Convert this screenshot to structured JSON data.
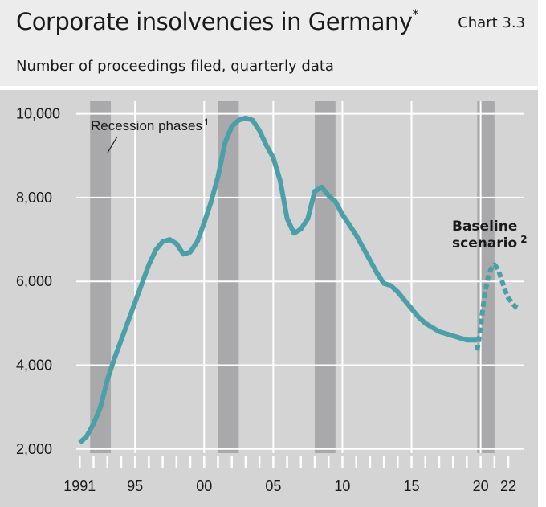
{
  "header": {
    "title": "Corporate insolvencies in Germany",
    "title_marker": "*",
    "chart_label": "Chart 3.3",
    "subtitle": "Number of proceedings filed, quarterly data"
  },
  "colors": {
    "line": "#4b9fa8",
    "recession": "#a9a9ab",
    "plot_bg": "#d4d4d5"
  },
  "chart_data": {
    "type": "line",
    "title": "Corporate insolvencies in Germany",
    "subtitle": "Number of proceedings filed, quarterly data",
    "ylabel": "",
    "xlabel": "",
    "ylim": [
      1900,
      10300
    ],
    "xlim": [
      1990.75,
      2023.1
    ],
    "y_ticks": [
      2000,
      4000,
      6000,
      8000,
      10000
    ],
    "y_tick_labels": [
      "2,000",
      "4,000",
      "6,000",
      "8,000",
      "10,000"
    ],
    "x_ticks": [
      1991,
      1995,
      2000,
      2005,
      2010,
      2015,
      2020,
      2022
    ],
    "x_tick_labels": [
      "1991",
      "95",
      "00",
      "05",
      "10",
      "15",
      "20",
      "22"
    ],
    "grid": true,
    "annotations": {
      "recession": "Recession phases",
      "recession_note": "1",
      "baseline_line1": "Baseline",
      "baseline_line2": "scenario",
      "baseline_note": "2"
    },
    "recession_phases": [
      [
        1991.75,
        1993.25
      ],
      [
        2001.0,
        2002.5
      ],
      [
        2008.0,
        2009.5
      ],
      [
        2019.75,
        2021.0
      ]
    ],
    "series": [
      {
        "name": "Corporate insolvencies",
        "style": "solid",
        "x": [
          1991.0,
          1991.5,
          1992.0,
          1992.5,
          1993.0,
          1993.5,
          1994.0,
          1994.5,
          1995.0,
          1995.5,
          1996.0,
          1996.5,
          1997.0,
          1997.5,
          1998.0,
          1998.5,
          1999.0,
          1999.5,
          2000.0,
          2000.5,
          2001.0,
          2001.5,
          2002.0,
          2002.5,
          2003.0,
          2003.5,
          2004.0,
          2004.5,
          2005.0,
          2005.5,
          2006.0,
          2006.5,
          2007.0,
          2007.5,
          2008.0,
          2008.5,
          2009.0,
          2009.5,
          2010.0,
          2010.5,
          2011.0,
          2011.5,
          2012.0,
          2012.5,
          2013.0,
          2013.5,
          2014.0,
          2014.5,
          2015.0,
          2015.5,
          2016.0,
          2016.5,
          2017.0,
          2017.5,
          2018.0,
          2018.5,
          2019.0,
          2019.5,
          2019.75
        ],
        "values": [
          2150,
          2300,
          2600,
          3000,
          3650,
          4150,
          4600,
          5050,
          5500,
          5950,
          6400,
          6750,
          6950,
          7000,
          6900,
          6650,
          6700,
          6950,
          7400,
          7900,
          8500,
          9300,
          9700,
          9850,
          9900,
          9850,
          9600,
          9250,
          8950,
          8400,
          7500,
          7150,
          7250,
          7500,
          8150,
          8250,
          8050,
          7900,
          7600,
          7350,
          7100,
          6800,
          6500,
          6200,
          5950,
          5900,
          5750,
          5550,
          5350,
          5150,
          5000,
          4900,
          4800,
          4750,
          4700,
          4650,
          4600,
          4600,
          4600
        ]
      },
      {
        "name": "Baseline scenario",
        "style": "dashed",
        "x": [
          2019.75,
          2020.0,
          2020.25,
          2020.5,
          2020.75,
          2021.0,
          2021.25,
          2021.5,
          2021.75,
          2022.0,
          2022.25,
          2022.5,
          2022.75
        ],
        "values": [
          4350,
          4900,
          5600,
          6050,
          6300,
          6400,
          6300,
          6050,
          5800,
          5600,
          5500,
          5400,
          5350
        ]
      }
    ]
  }
}
